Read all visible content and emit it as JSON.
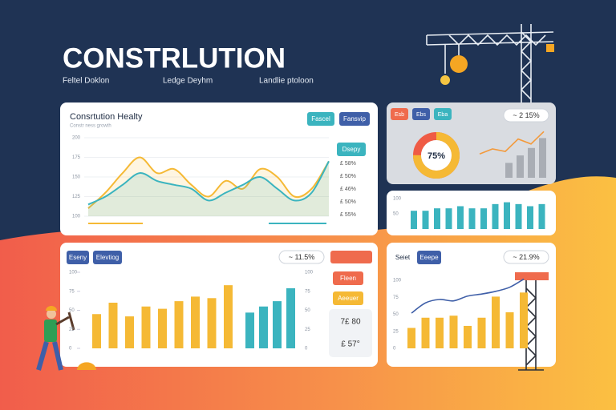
{
  "header": {
    "title": "CONSTRLUTION",
    "tabs": [
      "Feltel Doklon",
      "Ledge Deyhm",
      "Landlie ptoloon"
    ]
  },
  "health": {
    "title": "Consrtution Healty",
    "subtitle": "Constr ness growth",
    "buttons": [
      "Fascel",
      "Fansvip"
    ],
    "tag": "Dsepy",
    "ylim": [
      100,
      200
    ],
    "yticks": [
      100,
      125,
      150,
      175,
      200
    ],
    "series": [
      {
        "color": "#f5b935",
        "values": [
          110,
          130,
          155,
          175,
          155,
          160,
          140,
          125,
          145,
          135,
          160,
          150,
          125,
          135,
          170
        ]
      },
      {
        "color": "#3bb4bf",
        "values": [
          115,
          125,
          140,
          155,
          145,
          140,
          135,
          120,
          130,
          140,
          150,
          135,
          120,
          130,
          170
        ]
      }
    ],
    "side_labels": [
      "£ 58%",
      "£ 50%",
      "£ 46%",
      "£ 50%",
      "£ 55%"
    ]
  },
  "kpi": {
    "tags": [
      {
        "label": "Esb",
        "color": "#ef6b4d"
      },
      {
        "label": "Ebs",
        "color": "#3f5fa8"
      },
      {
        "label": "Eba",
        "color": "#3bb4bf"
      }
    ],
    "pill": "~ 2 15%",
    "donut": {
      "value": 75,
      "label": "75%"
    },
    "trend": {
      "color": "#f39a3c",
      "values": [
        40,
        50,
        45,
        70,
        60,
        85
      ]
    },
    "bars": {
      "color": "#a9adb4",
      "values": [
        30,
        45,
        60,
        80
      ]
    },
    "ylim": [
      0,
      100
    ]
  },
  "volume": {
    "ylim": [
      0,
      100
    ],
    "yticks": [
      50,
      100
    ],
    "color": "#3bb4bf",
    "values": [
      60,
      60,
      68,
      68,
      75,
      68,
      68,
      82,
      88,
      82,
      75,
      82
    ]
  },
  "output": {
    "buttons": [
      "Eseny",
      "Elevtiog"
    ],
    "pill": "~ 11.5%",
    "ylim": [
      0,
      100
    ],
    "yticks": [
      0,
      25,
      50,
      75,
      100
    ],
    "series": [
      {
        "color": "#f5b935",
        "values": [
          45,
          60,
          42,
          55,
          52,
          62,
          68,
          66,
          83
        ]
      },
      {
        "color": "#3bb4bf",
        "values": [
          47,
          55,
          62,
          79
        ]
      }
    ],
    "side_buttons": [
      {
        "label": "Fleen",
        "color": "#ef6b4d"
      },
      {
        "label": "Aeeuer",
        "color": "#f5b935"
      }
    ],
    "figures": [
      "7£ 80",
      "£ 57°"
    ]
  },
  "progress": {
    "buttons": [
      "Seiet",
      "Eeepe"
    ],
    "pill": "~ 21.9%",
    "ylim": [
      0,
      100
    ],
    "yticks": [
      0,
      25,
      50,
      75,
      100
    ],
    "bars": {
      "color": "#f5b935",
      "values": [
        30,
        45,
        45,
        48,
        33,
        45,
        76,
        53,
        82
      ]
    },
    "line": {
      "color": "#3f5fa8",
      "values": [
        40,
        55,
        60,
        58,
        65,
        68,
        72,
        78,
        90
      ]
    }
  }
}
